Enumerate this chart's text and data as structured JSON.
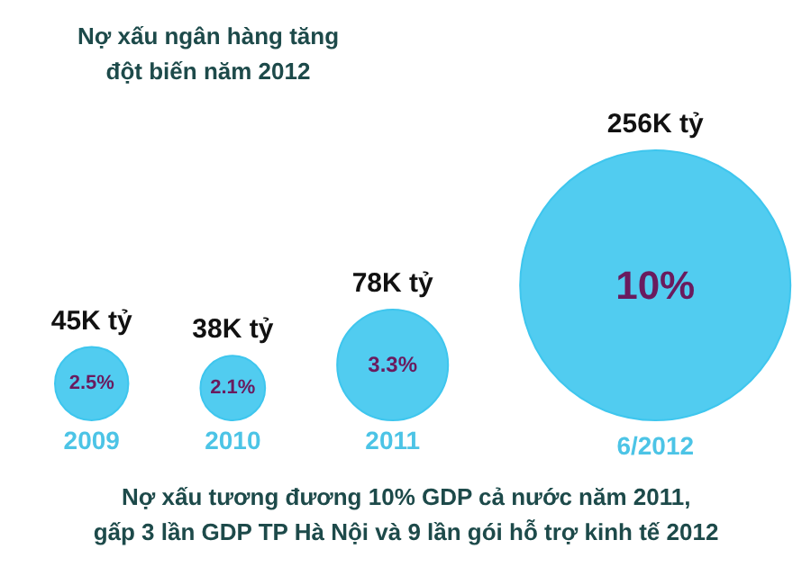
{
  "chart_data": {
    "type": "other",
    "title": "Nợ xấu ngân hàng tăng\nđột biến năm 2012",
    "categories": [
      "2009",
      "2010",
      "2011",
      "6/2012"
    ],
    "values": [
      45,
      38,
      78,
      256
    ],
    "value_labels": [
      "45K tỷ",
      "38K tỷ",
      "78K tỷ",
      "256K tỷ"
    ],
    "color": "#3ec6ee",
    "annotations": [
      "2.5%",
      "2.1%",
      "3.3%",
      "10%",
      "Nợ xấu tương đương 10% GDP cả nước năm 2011,\ngấp 3 lần GDP TP Hà Nội và 9 lần gói hỗ trợ kinh tế 2012"
    ]
  }
}
